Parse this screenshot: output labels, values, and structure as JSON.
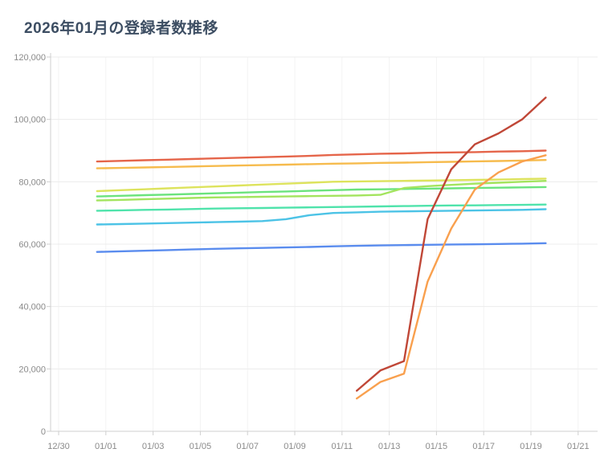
{
  "page": {
    "title": "2026年01月の登録者数推移"
  },
  "chart_data": {
    "type": "line",
    "title": "2026年01月の登録者数推移",
    "xlabel": "",
    "ylabel": "",
    "ylim": [
      0,
      120000
    ],
    "grid": true,
    "legend_position": "none",
    "x_dates": [
      "01/01",
      "01/02",
      "01/03",
      "01/04",
      "01/05",
      "01/06",
      "01/07",
      "01/08",
      "01/09",
      "01/10",
      "01/11",
      "01/12",
      "01/13",
      "01/14",
      "01/15",
      "01/16",
      "01/17",
      "01/18",
      "01/19",
      "01/20"
    ],
    "x_tick_days": [
      -2,
      0,
      2,
      4,
      6,
      8,
      10,
      12,
      14,
      16,
      18,
      20
    ],
    "x_tick_labels": [
      "12/30",
      "01/01",
      "01/03",
      "01/05",
      "01/07",
      "01/09",
      "01/11",
      "01/13",
      "01/15",
      "01/17",
      "01/19",
      "01/21"
    ],
    "y_tick_values": [
      0,
      20000,
      40000,
      60000,
      80000,
      100000,
      120000
    ],
    "y_tick_labels": [
      "0",
      "20,000",
      "40,000",
      "60,000",
      "80,000",
      "100,000",
      "120,000"
    ],
    "series": [
      {
        "name": "line-red",
        "color": "#e5654a",
        "values": [
          86500,
          86700,
          86900,
          87100,
          87300,
          87500,
          87700,
          87900,
          88100,
          88300,
          88600,
          88800,
          89000,
          89100,
          89300,
          89400,
          89500,
          89700,
          89800,
          90000
        ]
      },
      {
        "name": "line-amber",
        "color": "#f6bb4d",
        "values": [
          84300,
          84450,
          84600,
          84750,
          84900,
          85050,
          85200,
          85350,
          85500,
          85650,
          85800,
          85900,
          86050,
          86150,
          86300,
          86400,
          86550,
          86650,
          86800,
          87000
        ]
      },
      {
        "name": "line-yellow-green",
        "color": "#dde35d",
        "values": [
          77000,
          77300,
          77600,
          77900,
          78200,
          78500,
          78800,
          79100,
          79400,
          79700,
          80000,
          80100,
          80200,
          80300,
          80400,
          80500,
          80600,
          80700,
          80850,
          81000
        ]
      },
      {
        "name": "line-green",
        "color": "#6be37d",
        "values": [
          75300,
          75500,
          75700,
          75900,
          76100,
          76300,
          76500,
          76700,
          76900,
          77100,
          77300,
          77500,
          77600,
          77700,
          77800,
          77900,
          78000,
          78100,
          78200,
          78300
        ]
      },
      {
        "name": "line-light-green",
        "color": "#a3e45e",
        "values": [
          74000,
          74200,
          74400,
          74600,
          74800,
          75000,
          75100,
          75200,
          75300,
          75400,
          75500,
          75600,
          75800,
          78000,
          78600,
          79000,
          79400,
          79700,
          80000,
          80300
        ]
      },
      {
        "name": "line-teal",
        "color": "#4fe3ab",
        "values": [
          70700,
          70850,
          71000,
          71100,
          71250,
          71400,
          71500,
          71600,
          71700,
          71800,
          71900,
          72000,
          72100,
          72200,
          72300,
          72400,
          72450,
          72550,
          72600,
          72700
        ]
      },
      {
        "name": "line-cyan",
        "color": "#4cc3e6",
        "values": [
          66300,
          66450,
          66600,
          66750,
          66900,
          67050,
          67200,
          67400,
          68000,
          69300,
          70000,
          70200,
          70400,
          70500,
          70600,
          70700,
          70800,
          70900,
          71000,
          71200
        ]
      },
      {
        "name": "line-blue",
        "color": "#5a8cee",
        "values": [
          57500,
          57700,
          57900,
          58100,
          58300,
          58500,
          58650,
          58800,
          58950,
          59100,
          59300,
          59450,
          59600,
          59700,
          59800,
          59900,
          59950,
          60050,
          60150,
          60300
        ]
      },
      {
        "name": "line-dark-red-spike",
        "color": "#c04737",
        "values": [
          null,
          null,
          null,
          null,
          null,
          null,
          null,
          null,
          null,
          null,
          null,
          13000,
          19500,
          22500,
          68000,
          84000,
          92000,
          95500,
          100000,
          107000
        ]
      },
      {
        "name": "line-orange-spike",
        "color": "#f9a04e",
        "values": [
          null,
          null,
          null,
          null,
          null,
          null,
          null,
          null,
          null,
          null,
          null,
          10500,
          15800,
          18500,
          48000,
          65000,
          77500,
          83000,
          86500,
          88500
        ]
      }
    ]
  }
}
